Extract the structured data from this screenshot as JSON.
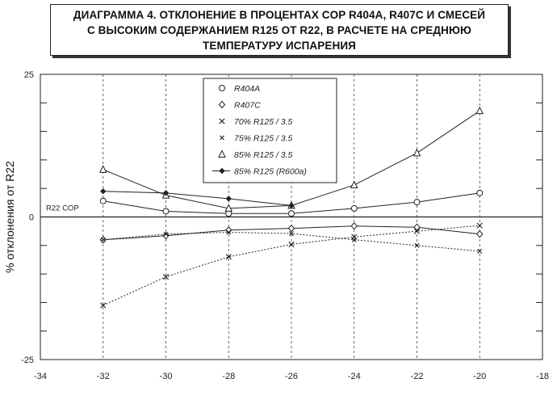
{
  "chart_data": {
    "type": "line",
    "title": "ДИАГРАММА 4. ОТКЛОНЕНИЕ В ПРОЦЕНТАХ COP R404A, R407C И СМЕСЕЙ\nС ВЫСОКИМ СОДЕРЖАНИЕМ R125 ОТ R22, В РАСЧЕТЕ НА СРЕДНЮЮ\nТЕМПЕРАТУРУ ИСПАРЕНИЯ",
    "xlabel": "",
    "ylabel": "% отклонения от R22",
    "xlim": [
      -34,
      -18
    ],
    "ylim": [
      -25,
      25
    ],
    "x_ticks": [
      -34,
      -32,
      -30,
      -28,
      -26,
      -24,
      -22,
      -20,
      -18
    ],
    "x_tick_labels": [
      "-34",
      "-32",
      "-30",
      "-28",
      "-26",
      "-24",
      "-22",
      "-20",
      "-18"
    ],
    "y_ticks": [
      -25,
      0,
      25
    ],
    "y_tick_labels": [
      "-25",
      "0",
      "25"
    ],
    "grid": "vertical dashed",
    "legend_position": "top-center",
    "annotation": "R22 COP",
    "x": [
      -32,
      -30,
      -28,
      -26,
      -24,
      -22,
      -20
    ],
    "series": [
      {
        "name": "R404A",
        "marker": "circle",
        "values": [
          2.8,
          1.0,
          0.6,
          0.6,
          1.5,
          2.6,
          4.2
        ]
      },
      {
        "name": "R407C",
        "marker": "diamond",
        "values": [
          -4.0,
          -3.3,
          -2.3,
          -2.0,
          -1.6,
          -1.8,
          -3.0
        ]
      },
      {
        "name": "70% R125 / 3.5",
        "marker": "x",
        "values": [
          -15.5,
          -10.5,
          -7.0,
          -4.8,
          -3.5,
          -2.5,
          -1.5
        ]
      },
      {
        "name": "75% R125 / 3.5",
        "marker": "x-small",
        "values": [
          -4.0,
          -3.0,
          -2.7,
          -2.9,
          -4.0,
          -5.0,
          -6.0
        ]
      },
      {
        "name": "85% R125 / 3.5",
        "marker": "triangle",
        "values": [
          8.3,
          3.8,
          1.5,
          2.0,
          5.6,
          11.2,
          18.6
        ]
      },
      {
        "name": "85% R125 (R600a)",
        "marker": "filled-diamond",
        "values": [
          4.5,
          4.2,
          3.2,
          2.0,
          null,
          null,
          null
        ]
      }
    ]
  }
}
